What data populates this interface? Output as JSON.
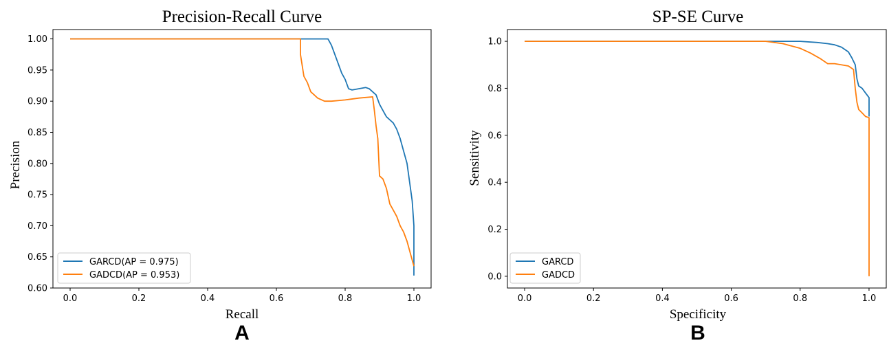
{
  "colors": {
    "series_1": "#1f77b4",
    "series_2": "#ff7f0e",
    "axis": "#000000"
  },
  "chart_data": [
    {
      "type": "line",
      "panel_label": "A",
      "title": "Precision-Recall Curve",
      "xlabel": "Recall",
      "ylabel": "Precision",
      "xlim": [
        -0.05,
        1.05
      ],
      "ylim": [
        0.6,
        1.015
      ],
      "xticks": [
        0.0,
        0.2,
        0.4,
        0.6,
        0.8,
        1.0
      ],
      "xtick_labels": [
        "0.0",
        "0.2",
        "0.4",
        "0.6",
        "0.8",
        "1.0"
      ],
      "yticks": [
        0.6,
        0.65,
        0.7,
        0.75,
        0.8,
        0.85,
        0.9,
        0.95,
        1.0
      ],
      "ytick_labels": [
        "0.60",
        "0.65",
        "0.70",
        "0.75",
        "0.80",
        "0.85",
        "0.90",
        "0.95",
        "1.00"
      ],
      "grid": false,
      "legend_position": "lower-left",
      "series": [
        {
          "name": "GARCD(AP = 0.975)",
          "x": [
            0.0,
            0.75,
            0.76,
            0.77,
            0.78,
            0.79,
            0.8,
            0.81,
            0.82,
            0.86,
            0.87,
            0.88,
            0.89,
            0.9,
            0.91,
            0.92,
            0.93,
            0.94,
            0.95,
            0.96,
            0.97,
            0.98,
            0.985,
            0.99,
            0.995,
            1.0,
            1.0
          ],
          "y": [
            1.0,
            1.0,
            0.99,
            0.975,
            0.96,
            0.945,
            0.935,
            0.92,
            0.918,
            0.922,
            0.92,
            0.915,
            0.91,
            0.895,
            0.885,
            0.875,
            0.87,
            0.865,
            0.855,
            0.84,
            0.82,
            0.8,
            0.78,
            0.76,
            0.74,
            0.7,
            0.62
          ]
        },
        {
          "name": "GADCD(AP = 0.953)",
          "x": [
            0.0,
            0.67,
            0.67,
            0.68,
            0.69,
            0.7,
            0.71,
            0.72,
            0.74,
            0.76,
            0.8,
            0.84,
            0.88,
            0.885,
            0.89,
            0.895,
            0.9,
            0.91,
            0.92,
            0.93,
            0.94,
            0.95,
            0.96,
            0.97,
            0.98,
            0.99,
            1.0
          ],
          "y": [
            1.0,
            1.0,
            0.975,
            0.94,
            0.93,
            0.915,
            0.91,
            0.905,
            0.9,
            0.9,
            0.902,
            0.905,
            0.907,
            0.885,
            0.86,
            0.84,
            0.78,
            0.775,
            0.76,
            0.735,
            0.725,
            0.715,
            0.7,
            0.69,
            0.675,
            0.655,
            0.635
          ]
        }
      ]
    },
    {
      "type": "line",
      "panel_label": "B",
      "title": "SP-SE Curve",
      "xlabel": "Specificity",
      "ylabel": "Sensitivity",
      "xlim": [
        -0.05,
        1.05
      ],
      "ylim": [
        -0.05,
        1.05
      ],
      "xticks": [
        0.0,
        0.2,
        0.4,
        0.6,
        0.8,
        1.0
      ],
      "xtick_labels": [
        "0.0",
        "0.2",
        "0.4",
        "0.6",
        "0.8",
        "1.0"
      ],
      "yticks": [
        0.0,
        0.2,
        0.4,
        0.6,
        0.8,
        1.0
      ],
      "ytick_labels": [
        "0.0",
        "0.2",
        "0.4",
        "0.6",
        "0.8",
        "1.0"
      ],
      "grid": false,
      "legend_position": "lower-left",
      "series": [
        {
          "name": "GARCD",
          "x": [
            0.0,
            0.8,
            0.85,
            0.88,
            0.9,
            0.92,
            0.94,
            0.95,
            0.96,
            0.965,
            0.97,
            0.98,
            0.99,
            1.0,
            1.0
          ],
          "y": [
            1.0,
            1.0,
            0.995,
            0.99,
            0.985,
            0.975,
            0.955,
            0.93,
            0.9,
            0.84,
            0.81,
            0.8,
            0.78,
            0.76,
            0.68
          ]
        },
        {
          "name": "GADCD",
          "x": [
            0.0,
            0.7,
            0.75,
            0.8,
            0.83,
            0.86,
            0.88,
            0.9,
            0.94,
            0.955,
            0.96,
            0.965,
            0.97,
            0.98,
            0.99,
            1.0,
            1.0
          ],
          "y": [
            1.0,
            1.0,
            0.99,
            0.97,
            0.95,
            0.925,
            0.905,
            0.905,
            0.895,
            0.88,
            0.8,
            0.74,
            0.71,
            0.695,
            0.68,
            0.675,
            0.0
          ]
        }
      ]
    }
  ]
}
